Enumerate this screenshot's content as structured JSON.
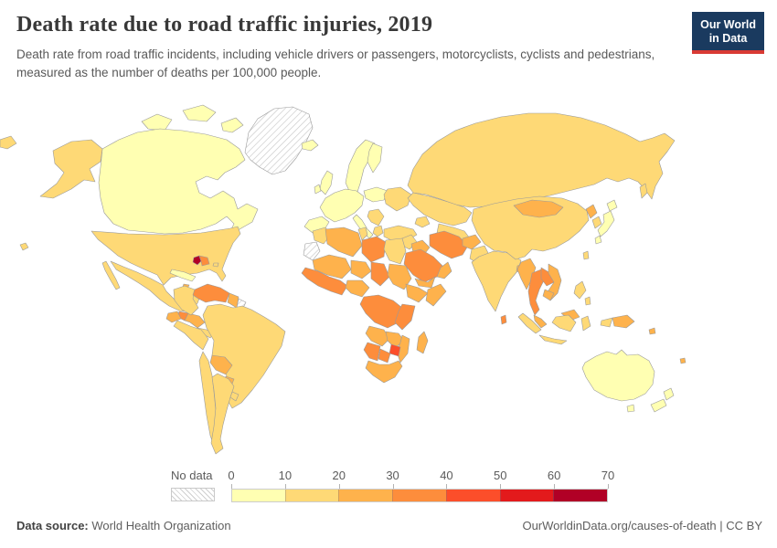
{
  "header": {
    "title": "Death rate due to road traffic injuries, 2019",
    "subtitle": "Death rate from road traffic incidents, including vehicle drivers or passengers, motorcyclists, cyclists and pedestrians, measured as the number of deaths per 100,000 people.",
    "logo": {
      "line1": "Our World",
      "line2": "in Data",
      "bg_color": "#1a3a5f",
      "accent_color": "#d93a34"
    }
  },
  "legend": {
    "no_data_label": "No data",
    "ticks": [
      "0",
      "10",
      "20",
      "30",
      "40",
      "50",
      "60",
      "70"
    ]
  },
  "footer": {
    "source_label": "Data source:",
    "source_value": "World Health Organization",
    "link_text": "OurWorldinData.org/causes-of-death",
    "separator": " | ",
    "license_text": "CC BY"
  },
  "map_style": {
    "ocean_color": "#ffffff",
    "border_color": "#9a9a9a",
    "hatch_color": "#c9c9c9"
  },
  "chart_data": {
    "type": "choropleth_map",
    "title": "Death rate due to road traffic injuries",
    "year": "2019",
    "unit": "deaths per 100,000 people",
    "legend_range": [
      0,
      70
    ],
    "bins": [
      {
        "range": "0-10",
        "color": "#ffffb2"
      },
      {
        "range": "10-20",
        "color": "#fed976"
      },
      {
        "range": "20-30",
        "color": "#feb24c"
      },
      {
        "range": "30-40",
        "color": "#fd8d3c"
      },
      {
        "range": "40-50",
        "color": "#fc4e2a"
      },
      {
        "range": "50-60",
        "color": "#e31a1c"
      },
      {
        "range": "60-70",
        "color": "#b10026"
      }
    ],
    "no_data_style": "gray diagonal hatch",
    "regions": {
      "greenland": {
        "label": "Greenland",
        "bin": "no-data"
      },
      "western-sahara": {
        "label": "Western Sahara",
        "bin": "no-data"
      },
      "french-guiana": {
        "label": "French Guiana",
        "bin": "no-data"
      },
      "canada": {
        "label": "Canada",
        "bin": 0
      },
      "usa": {
        "label": "United States",
        "bin": 1
      },
      "mexico": {
        "label": "Mexico",
        "bin": 1
      },
      "guatemala": {
        "label": "Guatemala",
        "bin": 3
      },
      "honduras-nicaragua": {
        "label": "Honduras & Nicaragua",
        "bin": 2
      },
      "costa-rica-panama": {
        "label": "Costa Rica & Panama",
        "bin": 1
      },
      "cuba": {
        "label": "Cuba",
        "bin": 0
      },
      "jamaica": {
        "label": "Jamaica",
        "bin": 2
      },
      "haiti": {
        "label": "Haiti",
        "bin": 6
      },
      "dominican-republic": {
        "label": "Dominican Republic",
        "bin": 3
      },
      "puerto-rico": {
        "label": "Puerto Rico",
        "bin": 1
      },
      "colombia": {
        "label": "Colombia",
        "bin": 1
      },
      "venezuela": {
        "label": "Venezuela",
        "bin": 3
      },
      "guyana-suriname": {
        "label": "Guyana & Suriname",
        "bin": 2
      },
      "ecuador": {
        "label": "Ecuador",
        "bin": 2
      },
      "peru": {
        "label": "Peru",
        "bin": 1
      },
      "brazil": {
        "label": "Brazil",
        "bin": 1
      },
      "bolivia": {
        "label": "Bolivia",
        "bin": 2
      },
      "paraguay": {
        "label": "Paraguay",
        "bin": 2
      },
      "chile": {
        "label": "Chile",
        "bin": 1
      },
      "argentina": {
        "label": "Argentina",
        "bin": 1
      },
      "uruguay": {
        "label": "Uruguay",
        "bin": 1
      },
      "iceland": {
        "label": "Iceland",
        "bin": 0
      },
      "uk": {
        "label": "United Kingdom",
        "bin": 0
      },
      "ireland": {
        "label": "Ireland",
        "bin": 0
      },
      "norway-sweden": {
        "label": "Norway & Sweden",
        "bin": 0
      },
      "finland": {
        "label": "Finland",
        "bin": 0
      },
      "west-europe": {
        "label": "Western Europe",
        "bin": 0
      },
      "iberia": {
        "label": "Spain & Portugal",
        "bin": 0
      },
      "italy": {
        "label": "Italy",
        "bin": 0
      },
      "central-europe": {
        "label": "Central Europe",
        "bin": 0
      },
      "east-europe": {
        "label": "Belarus & Ukraine",
        "bin": 1
      },
      "balkans": {
        "label": "Balkans",
        "bin": 1
      },
      "greece": {
        "label": "Greece",
        "bin": 1
      },
      "turkey": {
        "label": "Turkey",
        "bin": 1
      },
      "russia": {
        "label": "Russia",
        "bin": 1
      },
      "kazakhstan": {
        "label": "Kazakhstan",
        "bin": 1
      },
      "central-asia": {
        "label": "Central Asia",
        "bin": 1
      },
      "caucasus": {
        "label": "Caucasus",
        "bin": 1
      },
      "syria-levant": {
        "label": "Levant",
        "bin": 1
      },
      "iraq": {
        "label": "Iraq",
        "bin": 2
      },
      "iran": {
        "label": "Iran",
        "bin": 3
      },
      "saudi-arabia": {
        "label": "Saudi Arabia",
        "bin": 3
      },
      "yemen": {
        "label": "Yemen",
        "bin": 2
      },
      "oman": {
        "label": "Oman",
        "bin": 2
      },
      "morocco": {
        "label": "Morocco",
        "bin": 1
      },
      "algeria": {
        "label": "Algeria",
        "bin": 2
      },
      "tunisia": {
        "label": "Tunisia",
        "bin": 1
      },
      "libya": {
        "label": "Libya",
        "bin": 3
      },
      "egypt": {
        "label": "Egypt",
        "bin": 1
      },
      "mauritania-mali": {
        "label": "Mauritania & Mali",
        "bin": 2
      },
      "niger": {
        "label": "Niger",
        "bin": 2
      },
      "chad": {
        "label": "Chad",
        "bin": 3
      },
      "sudan": {
        "label": "Sudan",
        "bin": 2
      },
      "west-africa-coast": {
        "label": "West Africa",
        "bin": 3
      },
      "nigeria": {
        "label": "Nigeria",
        "bin": 2
      },
      "ethiopia": {
        "label": "Ethiopia",
        "bin": 2
      },
      "somalia": {
        "label": "Somalia",
        "bin": 2
      },
      "drc-central": {
        "label": "Central Africa & DR Congo",
        "bin": 3
      },
      "kenya-tanzania": {
        "label": "Kenya & Tanzania",
        "bin": 3
      },
      "angola": {
        "label": "Angola",
        "bin": 2
      },
      "zambia": {
        "label": "Zambia",
        "bin": 2
      },
      "mozambique": {
        "label": "Mozambique",
        "bin": 2
      },
      "zimbabwe": {
        "label": "Zimbabwe",
        "bin": 4
      },
      "namibia": {
        "label": "Namibia",
        "bin": 3
      },
      "botswana": {
        "label": "Botswana",
        "bin": 3
      },
      "south-africa": {
        "label": "South Africa",
        "bin": 2
      },
      "madagascar": {
        "label": "Madagascar",
        "bin": 2
      },
      "afghanistan": {
        "label": "Afghanistan",
        "bin": 2
      },
      "pakistan": {
        "label": "Pakistan",
        "bin": 1
      },
      "india": {
        "label": "India",
        "bin": 1
      },
      "sri-lanka": {
        "label": "Sri Lanka",
        "bin": 3
      },
      "bangladesh": {
        "label": "Bangladesh",
        "bin": 2
      },
      "china": {
        "label": "China",
        "bin": 1
      },
      "mongolia": {
        "label": "Mongolia",
        "bin": 2
      },
      "north-korea": {
        "label": "North Korea",
        "bin": 2
      },
      "south-korea": {
        "label": "South Korea",
        "bin": 1
      },
      "japan": {
        "label": "Japan",
        "bin": 0
      },
      "taiwan": {
        "label": "Taiwan",
        "bin": 1
      },
      "myanmar": {
        "label": "Myanmar",
        "bin": 2
      },
      "thailand": {
        "label": "Thailand",
        "bin": 3
      },
      "laos": {
        "label": "Laos",
        "bin": 3
      },
      "vietnam": {
        "label": "Vietnam",
        "bin": 2
      },
      "cambodia": {
        "label": "Cambodia",
        "bin": 2
      },
      "malaysia": {
        "label": "Malaysia",
        "bin": 2
      },
      "indonesia": {
        "label": "Indonesia",
        "bin": 1
      },
      "philippines": {
        "label": "Philippines",
        "bin": 1
      },
      "papua-new-guinea": {
        "label": "Papua New Guinea",
        "bin": 2
      },
      "melanesia": {
        "label": "Melanesia",
        "bin": 2
      },
      "australia": {
        "label": "Australia",
        "bin": 0
      },
      "new-zealand": {
        "label": "New Zealand",
        "bin": 0
      }
    }
  }
}
